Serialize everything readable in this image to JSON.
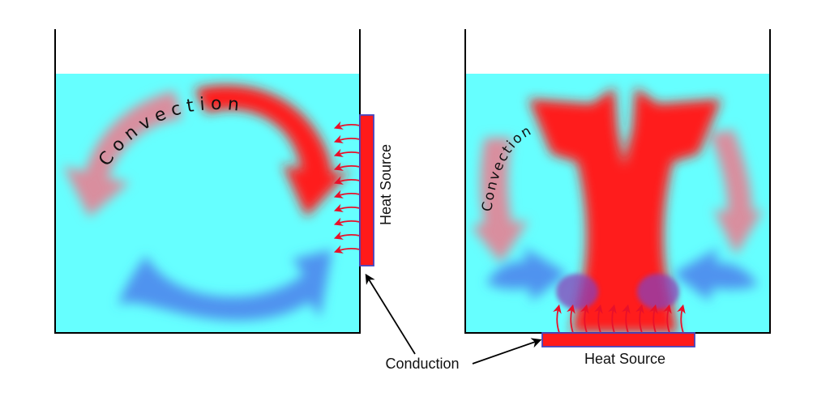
{
  "left_panel": {
    "heat_source_label": "Heat Source",
    "convection_label": "Convection"
  },
  "right_panel": {
    "heat_source_label": "Heat Source",
    "convection_label": "Convection"
  },
  "conduction_label": "Conduction",
  "colors": {
    "water": "#66ffff",
    "hot_flow": "#ff1a1a",
    "cooling_flow": "#d98e9e",
    "cold_flow": "#4f93ef",
    "heat_source": "#ff1a1a",
    "heat_source_border": "#4545c0",
    "conduction_arrow": "#e8102a"
  }
}
